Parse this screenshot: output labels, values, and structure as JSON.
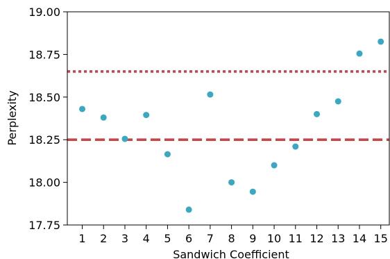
{
  "chart_data": {
    "type": "scatter",
    "xlabel": "Sandwich Coefficient",
    "ylabel": "Perplexity",
    "xlim": [
      0.3,
      15.4
    ],
    "ylim": [
      17.75,
      19.0
    ],
    "x_ticks": [
      "1",
      "2",
      "3",
      "4",
      "5",
      "6",
      "7",
      "8",
      "9",
      "10",
      "11",
      "12",
      "13",
      "14",
      "15"
    ],
    "y_ticks": [
      "17.75",
      "18.00",
      "18.25",
      "18.50",
      "18.75",
      "19.00"
    ],
    "y_tick_values": [
      17.75,
      18.0,
      18.25,
      18.5,
      18.75,
      19.0
    ],
    "series": [
      {
        "color": "#3aa8c1",
        "x": [
          1,
          2,
          3,
          4,
          5,
          6,
          7,
          8,
          9,
          10,
          11,
          12,
          13,
          14,
          15
        ],
        "y": [
          18.43,
          18.38,
          18.255,
          18.395,
          18.165,
          17.84,
          18.515,
          18.0,
          17.945,
          18.1,
          18.21,
          18.4,
          18.475,
          18.755,
          18.825
        ]
      }
    ],
    "reference_lines": [
      {
        "y": 18.25,
        "style": "dashed",
        "color": "#cc444b"
      },
      {
        "y": 18.65,
        "style": "dotted",
        "color": "#cc444b"
      }
    ],
    "grid": false,
    "spines": [
      "left",
      "bottom",
      "top",
      "right"
    ]
  }
}
